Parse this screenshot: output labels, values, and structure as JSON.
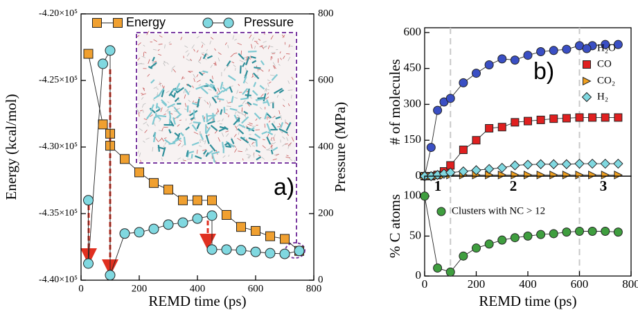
{
  "chart_data": [
    {
      "type": "line",
      "label": "a)",
      "xlabel": "REMD time (ps)",
      "ylabel": "Energy (kcal/mol)",
      "y2label": "Pressure (MPa)",
      "xlim": [
        0,
        800
      ],
      "xticks": [
        0,
        200,
        400,
        600,
        800
      ],
      "ylim": [
        -440000,
        -420000
      ],
      "yticks": [
        {
          "value": -440000,
          "label": "-4.40×10⁵"
        },
        {
          "value": -435000,
          "label": "-4.35×10⁵"
        },
        {
          "value": -430000,
          "label": "-4.30×10⁵"
        },
        {
          "value": -425000,
          "label": "-4.25×10⁵"
        },
        {
          "value": -420000,
          "label": "-4.20×10⁵"
        }
      ],
      "y2lim": [
        0,
        800
      ],
      "y2ticks": [
        0,
        200,
        400,
        600,
        800
      ],
      "legend": "top",
      "series": [
        {
          "name": "Energy",
          "color": "#f0a030",
          "marker": "square",
          "axis": "y",
          "x": [
            25,
            75,
            100,
            100,
            150,
            200,
            250,
            300,
            350,
            400,
            450,
            500,
            550,
            600,
            650,
            700,
            750
          ],
          "values": [
            -423000,
            -428300,
            -429000,
            -429900,
            -430900,
            -431900,
            -432700,
            -433200,
            -434000,
            -434000,
            -434000,
            -435100,
            -436000,
            -436300,
            -436700,
            -436900,
            -437800
          ]
        },
        {
          "name": "Pressure",
          "color": "#80d8e0",
          "marker": "circle",
          "axis": "y2",
          "x": [
            25,
            25,
            75,
            100,
            100,
            150,
            200,
            250,
            300,
            350,
            400,
            450,
            450,
            500,
            550,
            600,
            650,
            700,
            750
          ],
          "values": [
            240,
            50,
            650,
            690,
            15,
            140,
            144,
            154,
            167,
            173,
            185,
            194,
            92,
            92,
            90,
            85,
            81,
            79,
            88
          ]
        }
      ]
    },
    {
      "type": "line",
      "label": "b)",
      "ylabel": "# of molecules",
      "xlim": [
        0,
        800
      ],
      "ylim": [
        0,
        620
      ],
      "yticks": [
        0,
        150,
        300,
        450,
        600
      ],
      "vlines": [
        100,
        600
      ],
      "annotations": [
        "1",
        "2",
        "3"
      ],
      "legend": "right",
      "series": [
        {
          "name": "H₂O",
          "color": "#3a4fc4",
          "marker": "circle",
          "x": [
            0,
            25,
            50,
            75,
            100,
            150,
            200,
            250,
            300,
            350,
            400,
            450,
            500,
            550,
            600,
            650,
            700,
            750
          ],
          "values": [
            0,
            120,
            275,
            310,
            325,
            390,
            430,
            465,
            490,
            485,
            505,
            520,
            525,
            530,
            545,
            545,
            550,
            550
          ]
        },
        {
          "name": "CO",
          "color": "#e02020",
          "marker": "square",
          "x": [
            0,
            25,
            50,
            75,
            100,
            150,
            200,
            250,
            300,
            350,
            400,
            450,
            500,
            550,
            600,
            650,
            700,
            750
          ],
          "values": [
            0,
            0,
            5,
            20,
            45,
            110,
            150,
            200,
            205,
            225,
            230,
            235,
            240,
            242,
            245,
            245,
            245,
            245
          ]
        },
        {
          "name": "CO₂",
          "color": "#f0a020",
          "marker": "triangle",
          "x": [
            0,
            25,
            50,
            75,
            100,
            150,
            200,
            250,
            300,
            350,
            400,
            450,
            500,
            550,
            600,
            650,
            700,
            750
          ],
          "values": [
            0,
            0,
            2,
            4,
            5,
            5,
            5,
            5,
            5,
            5,
            5,
            5,
            5,
            5,
            5,
            5,
            5,
            5
          ]
        },
        {
          "name": "H₂",
          "color": "#80d8e0",
          "marker": "diamond",
          "x": [
            0,
            25,
            50,
            75,
            100,
            150,
            200,
            250,
            300,
            350,
            400,
            450,
            500,
            550,
            600,
            650,
            700,
            750
          ],
          "values": [
            0,
            0,
            5,
            10,
            15,
            20,
            25,
            30,
            35,
            45,
            48,
            50,
            50,
            50,
            52,
            52,
            52,
            52
          ]
        }
      ]
    },
    {
      "type": "line",
      "xlabel": "REMD time (ps)",
      "ylabel": "% C atoms",
      "xlim": [
        0,
        800
      ],
      "xticks": [
        0,
        200,
        400,
        600,
        800
      ],
      "ylim": [
        0,
        125
      ],
      "yticks": [
        0,
        50,
        100
      ],
      "vlines": [
        100,
        600
      ],
      "legend": "upper left",
      "series": [
        {
          "name": "Clusters with NC > 12",
          "color": "#3f9e3f",
          "marker": "circle",
          "x": [
            0,
            50,
            100,
            150,
            200,
            250,
            300,
            350,
            400,
            450,
            500,
            550,
            600,
            650,
            700,
            750
          ],
          "values": [
            100,
            10,
            5,
            25,
            35,
            40,
            45,
            48,
            50,
            52,
            53,
            55,
            56,
            56,
            56,
            55
          ]
        }
      ]
    }
  ]
}
